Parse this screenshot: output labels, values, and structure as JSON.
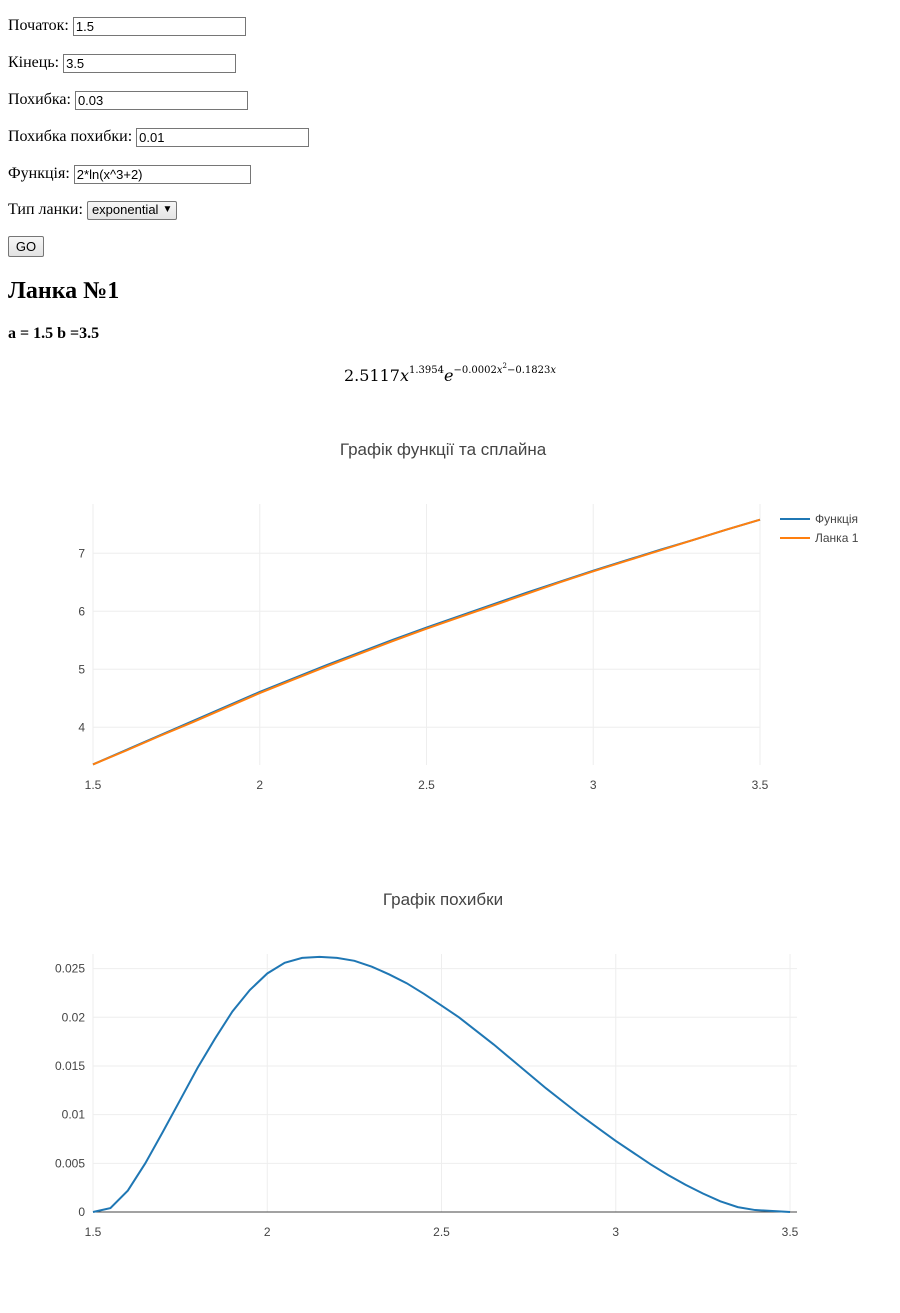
{
  "form": {
    "start_label": "Початок:",
    "start_value": "1.5",
    "end_label": "Кінець:",
    "end_value": "3.5",
    "error_label": "Похибка:",
    "error_value": "0.03",
    "error_of_error_label": "Похибка похибки:",
    "error_of_error_value": "0.01",
    "function_label": "Функція:",
    "function_value": "2*ln(x^3+2)",
    "link_type_label": "Тип ланки:",
    "link_type_value": "exponential",
    "go_label": "GO"
  },
  "section": {
    "title": "Ланка №1",
    "bounds": "a = 1.5 b =3.5"
  },
  "formula": {
    "coef": "2.5117",
    "base_var": "x",
    "power": "1.3954",
    "exp_base": "e",
    "exp_neg": "−0.0002",
    "exp_var2": "x",
    "exp_var2_power": "2",
    "exp_minus": "−0.1823",
    "exp_var1": "x"
  },
  "chart_data": [
    {
      "type": "line",
      "title": "Графік функції та сплайна",
      "xlim": [
        1.5,
        3.5
      ],
      "ylim": [
        3.35,
        7.85
      ],
      "xticks": [
        "1.5",
        "2",
        "2.5",
        "3",
        "3.5"
      ],
      "xtick_values": [
        1.5,
        2,
        2.5,
        3,
        3.5
      ],
      "yticks": [
        "4",
        "5",
        "6",
        "7"
      ],
      "ytick_values": [
        4,
        5,
        6,
        7
      ],
      "legend_position": "top-right",
      "grid": true,
      "series": [
        {
          "name": "Функція",
          "color": "#1f77b4",
          "x": [
            1.5,
            1.6,
            1.7,
            1.8,
            1.9,
            2.0,
            2.1,
            2.2,
            2.3,
            2.4,
            2.5,
            2.6,
            2.7,
            2.8,
            2.9,
            3.0,
            3.1,
            3.2,
            3.3,
            3.4,
            3.5
          ],
          "y": [
            3.36,
            3.61,
            3.86,
            4.11,
            4.36,
            4.61,
            4.84,
            5.07,
            5.29,
            5.51,
            5.72,
            5.92,
            6.12,
            6.32,
            6.51,
            6.7,
            6.88,
            7.06,
            7.23,
            7.41,
            7.58
          ]
        },
        {
          "name": "Ланка 1",
          "color": "#ff7f0e",
          "x": [
            1.5,
            1.6,
            1.7,
            1.8,
            1.9,
            2.0,
            2.1,
            2.2,
            2.3,
            2.4,
            2.5,
            2.6,
            2.7,
            2.8,
            2.9,
            3.0,
            3.1,
            3.2,
            3.3,
            3.4,
            3.5
          ],
          "y": [
            3.36,
            3.6,
            3.85,
            4.09,
            4.34,
            4.59,
            4.82,
            5.05,
            5.27,
            5.49,
            5.7,
            5.9,
            6.1,
            6.3,
            6.5,
            6.69,
            6.87,
            7.05,
            7.23,
            7.41,
            7.58
          ]
        }
      ]
    },
    {
      "type": "line",
      "title": "Графік похибки",
      "xlim": [
        1.5,
        3.52
      ],
      "ylim": [
        0,
        0.0265
      ],
      "xticks": [
        "1.5",
        "2",
        "2.5",
        "3",
        "3.5"
      ],
      "xtick_values": [
        1.5,
        2,
        2.5,
        3,
        3.5
      ],
      "yticks": [
        "0",
        "0.005",
        "0.01",
        "0.015",
        "0.02",
        "0.025"
      ],
      "ytick_values": [
        0,
        0.005,
        0.01,
        0.015,
        0.02,
        0.025
      ],
      "grid": true,
      "series": [
        {
          "color": "#1f77b4",
          "x": [
            1.5,
            1.55,
            1.6,
            1.65,
            1.7,
            1.75,
            1.8,
            1.85,
            1.9,
            1.95,
            2.0,
            2.05,
            2.1,
            2.15,
            2.2,
            2.25,
            2.3,
            2.35,
            2.4,
            2.45,
            2.5,
            2.55,
            2.6,
            2.65,
            2.7,
            2.75,
            2.8,
            2.85,
            2.9,
            2.95,
            3.0,
            3.05,
            3.1,
            3.15,
            3.2,
            3.25,
            3.3,
            3.35,
            3.4,
            3.45,
            3.5
          ],
          "y": [
            0,
            0.0004,
            0.0022,
            0.005,
            0.0082,
            0.0115,
            0.0148,
            0.0178,
            0.0206,
            0.0228,
            0.0245,
            0.0256,
            0.0261,
            0.0262,
            0.0261,
            0.0258,
            0.0252,
            0.0244,
            0.0235,
            0.0224,
            0.0212,
            0.02,
            0.0186,
            0.0172,
            0.0157,
            0.0142,
            0.0127,
            0.0113,
            0.0099,
            0.0086,
            0.0073,
            0.0061,
            0.0049,
            0.0038,
            0.0028,
            0.0019,
            0.0011,
            0.0005,
            0.0002,
            0.0001,
            0
          ],
          "y_plot": [
            0,
            0.0004,
            0.0022,
            0.005,
            0.0082,
            0.0115,
            0.0148,
            0.0178,
            0.0206,
            0.0228,
            0.0245,
            0.0256,
            0.0261,
            0.0262,
            0.0261,
            0.0258,
            0.0252,
            0.0244,
            0.0235,
            0.0224,
            0.0212,
            0.02,
            0.0186,
            0.0172,
            0.0157,
            0.0142,
            0.0127,
            0.0113,
            0.0099,
            0.0086,
            0.0073,
            0.0061,
            0.0049,
            0.0038,
            0.0028,
            0.0019,
            0.0011,
            0.0005,
            0.0002,
            0.0001,
            0
          ]
        }
      ]
    }
  ]
}
